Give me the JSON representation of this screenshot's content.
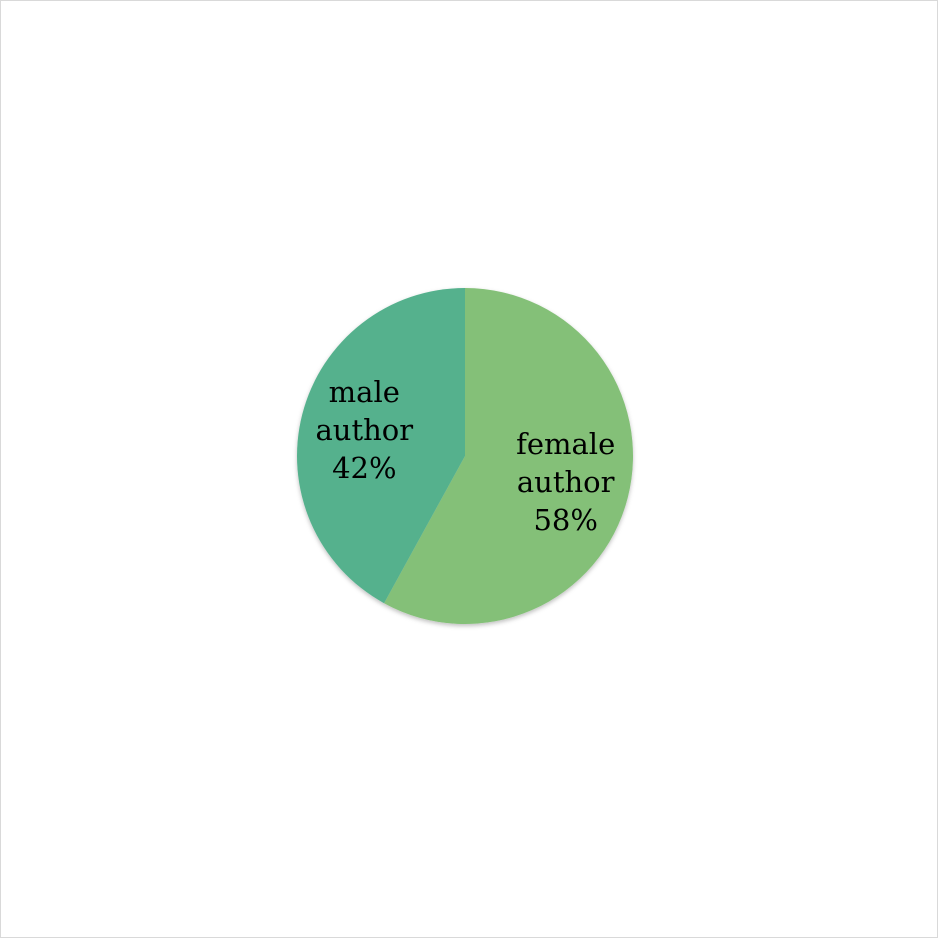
{
  "chart_data": {
    "type": "pie",
    "title": "",
    "start_angle_deg": 0,
    "direction": "clockwise",
    "legend": "none",
    "slices": [
      {
        "label_lines": [
          "female",
          "author"
        ],
        "value": 58,
        "value_label": "58%",
        "color": "#84c078"
      },
      {
        "label_lines": [
          "male",
          "author"
        ],
        "value": 42,
        "value_label": "42%",
        "color": "#55b18d"
      }
    ]
  }
}
